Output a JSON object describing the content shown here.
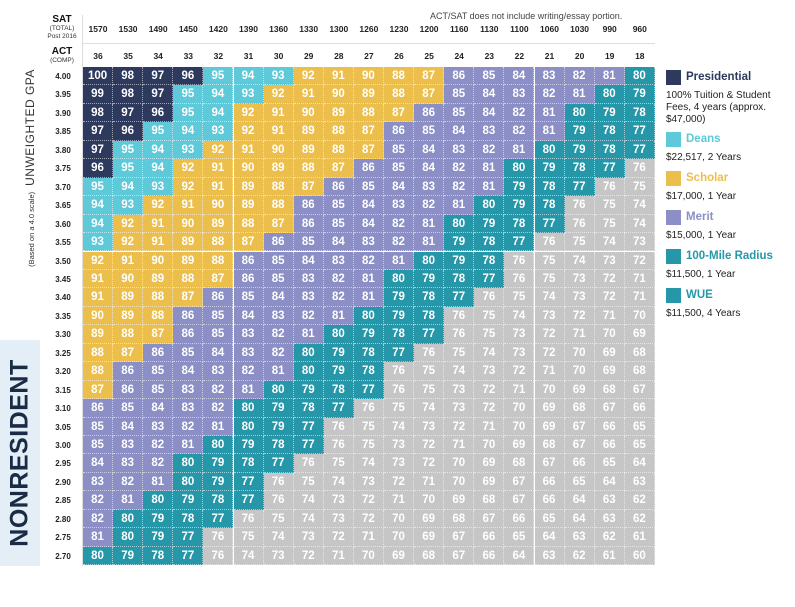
{
  "note": "ACT/SAT does not include writing/essay portion.",
  "side_label": "NONRESIDENT",
  "y_axis": {
    "title": "UNWEIGHTED GPA",
    "subtitle": "(Based on a 4.0 scale)"
  },
  "sat_header": {
    "title": "SAT",
    "sub1": "(TOTAL)",
    "sub2": "Post 2016"
  },
  "act_header": {
    "title": "ACT",
    "sub1": "(COMP)"
  },
  "colors": {
    "presidential": "#2d3a5e",
    "deans": "#5ec9d9",
    "scholar": "#ecbe4b",
    "merit": "#8b8fc5",
    "radius": "#2597a9",
    "wue": "#2597a9",
    "none": "#c6c6c6"
  },
  "legend": [
    {
      "key": "presidential",
      "name": "Presidential",
      "desc": "100% Tuition & Student Fees, 4 years (approx. $47,000)"
    },
    {
      "key": "deans",
      "name": "Deans",
      "desc": "$22,517, 2 Years"
    },
    {
      "key": "scholar",
      "name": "Scholar",
      "desc": "$17,000, 1 Year"
    },
    {
      "key": "merit",
      "name": "Merit",
      "desc": "$15,000, 1 Year"
    },
    {
      "key": "radius",
      "name": "100-Mile Radius",
      "desc": "$11,500, 1 Year"
    },
    {
      "key": "wue",
      "name": "WUE",
      "desc": "$11,500, 4 Years"
    }
  ],
  "chart_data": {
    "type": "heatmap",
    "x_sat": [
      "1570",
      "1530",
      "1490",
      "1450",
      "1420",
      "1390",
      "1360",
      "1330",
      "1300",
      "1260",
      "1230",
      "1200",
      "1160",
      "1130",
      "1100",
      "1060",
      "1030",
      "990",
      "960"
    ],
    "x_act": [
      "36",
      "35",
      "34",
      "33",
      "32",
      "31",
      "30",
      "29",
      "28",
      "27",
      "26",
      "25",
      "24",
      "23",
      "22",
      "21",
      "20",
      "19",
      "18"
    ],
    "rows": [
      {
        "gpa": "4.00",
        "values": [
          100,
          98,
          97,
          96,
          95,
          94,
          93,
          92,
          91,
          90,
          88,
          87,
          86,
          85,
          84,
          83,
          82,
          81,
          80
        ]
      },
      {
        "gpa": "3.95",
        "values": [
          99,
          98,
          97,
          95,
          94,
          93,
          92,
          91,
          90,
          89,
          88,
          87,
          85,
          84,
          83,
          82,
          81,
          80,
          79
        ]
      },
      {
        "gpa": "3.90",
        "values": [
          98,
          97,
          96,
          95,
          94,
          92,
          91,
          90,
          89,
          88,
          87,
          86,
          85,
          84,
          82,
          81,
          80,
          79,
          78
        ]
      },
      {
        "gpa": "3.85",
        "values": [
          97,
          96,
          95,
          94,
          93,
          92,
          91,
          89,
          88,
          87,
          86,
          85,
          84,
          83,
          82,
          81,
          79,
          78,
          77
        ]
      },
      {
        "gpa": "3.80",
        "values": [
          97,
          95,
          94,
          93,
          92,
          91,
          90,
          89,
          88,
          87,
          85,
          84,
          83,
          82,
          81,
          80,
          79,
          78,
          77
        ]
      },
      {
        "gpa": "3.75",
        "values": [
          96,
          95,
          94,
          92,
          91,
          90,
          89,
          88,
          87,
          86,
          85,
          84,
          82,
          81,
          80,
          79,
          78,
          77,
          76
        ]
      },
      {
        "gpa": "3.70",
        "values": [
          95,
          94,
          93,
          92,
          91,
          89,
          88,
          87,
          86,
          85,
          84,
          83,
          82,
          81,
          79,
          78,
          77,
          76,
          75
        ]
      },
      {
        "gpa": "3.65",
        "values": [
          94,
          93,
          92,
          91,
          90,
          89,
          88,
          86,
          85,
          84,
          83,
          82,
          81,
          80,
          79,
          78,
          76,
          75,
          74
        ]
      },
      {
        "gpa": "3.60",
        "values": [
          94,
          92,
          91,
          90,
          89,
          88,
          87,
          86,
          85,
          84,
          82,
          81,
          80,
          79,
          78,
          77,
          76,
          75,
          74
        ]
      },
      {
        "gpa": "3.55",
        "values": [
          93,
          92,
          91,
          89,
          88,
          87,
          86,
          85,
          84,
          83,
          82,
          81,
          79,
          78,
          77,
          76,
          75,
          74,
          73
        ]
      },
      {
        "gpa": "3.50",
        "values": [
          92,
          91,
          90,
          89,
          88,
          86,
          85,
          84,
          83,
          82,
          81,
          80,
          79,
          78,
          76,
          75,
          74,
          73,
          72
        ]
      },
      {
        "gpa": "3.45",
        "values": [
          91,
          90,
          89,
          88,
          87,
          86,
          85,
          83,
          82,
          81,
          80,
          79,
          78,
          77,
          76,
          75,
          73,
          72,
          71
        ]
      },
      {
        "gpa": "3.40",
        "values": [
          91,
          89,
          88,
          87,
          86,
          85,
          84,
          83,
          82,
          81,
          79,
          78,
          77,
          76,
          75,
          74,
          73,
          72,
          71
        ]
      },
      {
        "gpa": "3.35",
        "values": [
          90,
          89,
          88,
          86,
          85,
          84,
          83,
          82,
          81,
          80,
          79,
          78,
          76,
          75,
          74,
          73,
          72,
          71,
          70
        ]
      },
      {
        "gpa": "3.30",
        "values": [
          89,
          88,
          87,
          86,
          85,
          83,
          82,
          81,
          80,
          79,
          78,
          77,
          76,
          75,
          73,
          72,
          71,
          70,
          69
        ]
      },
      {
        "gpa": "3.25",
        "values": [
          88,
          87,
          86,
          85,
          84,
          83,
          82,
          80,
          79,
          78,
          77,
          76,
          75,
          74,
          73,
          72,
          70,
          69,
          68
        ]
      },
      {
        "gpa": "3.20",
        "values": [
          88,
          86,
          85,
          84,
          83,
          82,
          81,
          80,
          79,
          78,
          76,
          75,
          74,
          73,
          72,
          71,
          70,
          69,
          68
        ]
      },
      {
        "gpa": "3.15",
        "values": [
          87,
          86,
          85,
          83,
          82,
          81,
          80,
          79,
          78,
          77,
          76,
          75,
          73,
          72,
          71,
          70,
          69,
          68,
          67
        ]
      },
      {
        "gpa": "3.10",
        "values": [
          86,
          85,
          84,
          83,
          82,
          80,
          79,
          78,
          77,
          76,
          75,
          74,
          73,
          72,
          70,
          69,
          68,
          67,
          66
        ]
      },
      {
        "gpa": "3.05",
        "values": [
          85,
          84,
          83,
          82,
          81,
          80,
          79,
          77,
          76,
          75,
          74,
          73,
          72,
          71,
          70,
          69,
          67,
          66,
          65
        ]
      },
      {
        "gpa": "3.00",
        "values": [
          85,
          83,
          82,
          81,
          80,
          79,
          78,
          77,
          76,
          75,
          73,
          72,
          71,
          70,
          69,
          68,
          67,
          66,
          65
        ]
      },
      {
        "gpa": "2.95",
        "values": [
          84,
          83,
          82,
          80,
          79,
          78,
          77,
          76,
          75,
          74,
          73,
          72,
          70,
          69,
          68,
          67,
          66,
          65,
          64
        ]
      },
      {
        "gpa": "2.90",
        "values": [
          83,
          82,
          81,
          80,
          79,
          77,
          76,
          75,
          74,
          73,
          72,
          71,
          70,
          69,
          67,
          66,
          65,
          64,
          63
        ]
      },
      {
        "gpa": "2.85",
        "values": [
          82,
          81,
          80,
          79,
          78,
          77,
          76,
          74,
          73,
          72,
          71,
          70,
          69,
          68,
          67,
          66,
          64,
          63,
          62
        ]
      },
      {
        "gpa": "2.80",
        "values": [
          82,
          80,
          79,
          78,
          77,
          76,
          75,
          74,
          73,
          72,
          70,
          69,
          68,
          67,
          66,
          65,
          64,
          63,
          62
        ]
      },
      {
        "gpa": "2.75",
        "values": [
          81,
          80,
          79,
          77,
          76,
          75,
          74,
          73,
          72,
          71,
          70,
          69,
          67,
          66,
          65,
          64,
          63,
          62,
          61
        ]
      },
      {
        "gpa": "2.70",
        "values": [
          80,
          79,
          78,
          77,
          76,
          74,
          73,
          72,
          71,
          70,
          69,
          68,
          67,
          66,
          64,
          63,
          62,
          61,
          60
        ]
      }
    ]
  }
}
